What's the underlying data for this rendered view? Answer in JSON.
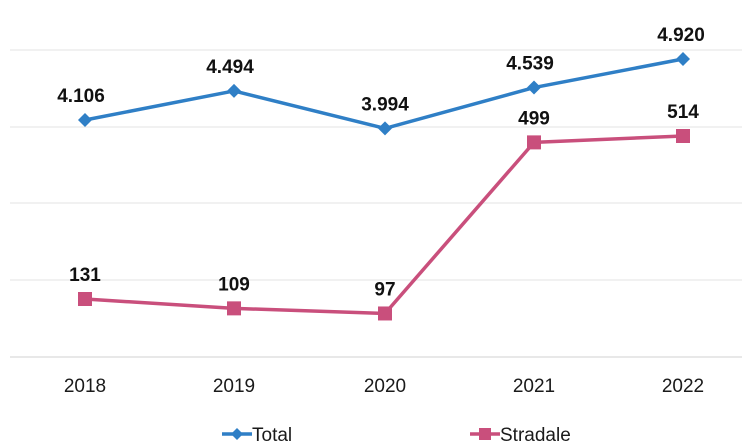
{
  "chart_data": {
    "type": "line",
    "categories": [
      "2018",
      "2019",
      "2020",
      "2021",
      "2022"
    ],
    "series": [
      {
        "name": "Total",
        "values": [
          4106,
          4494,
          3994,
          4539,
          4920
        ],
        "labels": [
          "4.106",
          "4.494",
          "3.994",
          "4.539",
          "4.920"
        ],
        "color": "#2f7fc6",
        "marker": "diamond"
      },
      {
        "name": "Stradale",
        "values": [
          131,
          109,
          97,
          499,
          514
        ],
        "labels": [
          "131",
          "109",
          "97",
          "499",
          "514"
        ],
        "color": "#c94f7c",
        "marker": "square"
      }
    ],
    "legend_position": "bottom",
    "grid": true
  }
}
